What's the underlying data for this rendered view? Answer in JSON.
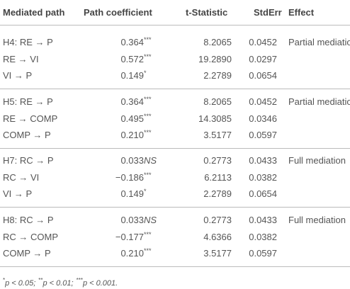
{
  "table": {
    "headers": [
      "Mediated path",
      "Path coefficient",
      "t-Statistic",
      "StdErr",
      "Effect"
    ],
    "groups": [
      {
        "effect": "Partial mediation",
        "rows": [
          [
            "H4: RE → P",
            "0.364",
            "***",
            "8.2065",
            "0.0452"
          ],
          [
            "RE → VI",
            "0.572",
            "***",
            "19.2890",
            "0.0297"
          ],
          [
            "VI → P",
            "0.149",
            "*",
            "2.2789",
            "0.0654"
          ]
        ]
      },
      {
        "effect": "Partial mediation",
        "rows": [
          [
            "H5: RE → P",
            "0.364",
            "***",
            "8.2065",
            "0.0452"
          ],
          [
            "RE → COMP",
            "0.495",
            "***",
            "14.3085",
            "0.0346"
          ],
          [
            "COMP → P",
            "0.210",
            "***",
            "3.5177",
            "0.0597"
          ]
        ]
      },
      {
        "effect": "Full mediation",
        "rows": [
          [
            "H7: RC → P",
            "0.033",
            "NS",
            "0.2773",
            "0.0433"
          ],
          [
            "RC → VI",
            "−0.186",
            "***",
            "6.2113",
            "0.0382"
          ],
          [
            "VI → P",
            "0.149",
            "*",
            "2.2789",
            "0.0654"
          ]
        ]
      },
      {
        "effect": "Full mediation",
        "rows": [
          [
            "H8: RC → P",
            "0.033",
            "NS",
            "0.2773",
            "0.0433"
          ],
          [
            "RC → COMP",
            "−0.177",
            "***",
            "4.6366",
            "0.0382"
          ],
          [
            "COMP → P",
            "0.210",
            "***",
            "3.5177",
            "0.0597"
          ]
        ]
      }
    ],
    "footnote": [
      {
        "stars": "*",
        "text": "p < 0.05;"
      },
      {
        "stars": "**",
        "text": "p < 0.01;"
      },
      {
        "stars": "***",
        "text": "p < 0.001."
      }
    ]
  }
}
